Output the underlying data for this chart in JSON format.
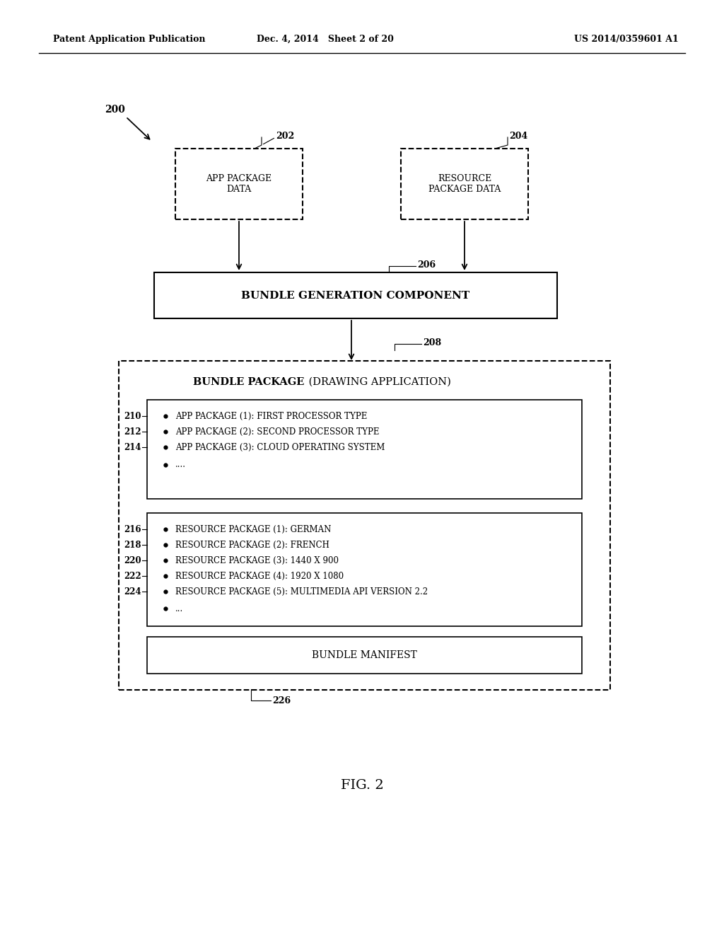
{
  "bg_color": "#ffffff",
  "header_left": "Patent Application Publication",
  "header_mid": "Dec. 4, 2014   Sheet 2 of 20",
  "header_right": "US 2014/0359601 A1",
  "fig_label": "FIG. 2",
  "label_200": "200",
  "label_202": "202",
  "label_204": "204",
  "label_206": "206",
  "label_208": "208",
  "label_210": "210",
  "label_212": "212",
  "label_214": "214",
  "label_216": "216",
  "label_218": "218",
  "label_220": "220",
  "label_222": "222",
  "label_224": "224",
  "label_226": "226",
  "box202_text": "APP PACKAGE\nDATA",
  "box204_text": "RESOURCE\nPACKAGE DATA",
  "box206_text": "BUNDLE GENERATION COMPONENT",
  "bundle_pkg_bold": "BUNDLE PACKAGE",
  "bundle_pkg_normal": " (DRAWING APPLICATION)",
  "app_pkg_items": [
    "APP PACKAGE (1): FIRST PROCESSOR TYPE",
    "APP PACKAGE (2): SECOND PROCESSOR TYPE",
    "APP PACKAGE (3): CLOUD OPERATING SYSTEM",
    "...."
  ],
  "res_pkg_items": [
    "RESOURCE PACKAGE (1): GERMAN",
    "RESOURCE PACKAGE (2): FRENCH",
    "RESOURCE PACKAGE (3): 1440 X 900",
    "RESOURCE PACKAGE (4): 1920 X 1080",
    "RESOURCE PACKAGE (5): MULTIMEDIA API VERSION 2.2",
    "..."
  ],
  "bundle_manifest_text": "BUNDLE MANIFEST"
}
